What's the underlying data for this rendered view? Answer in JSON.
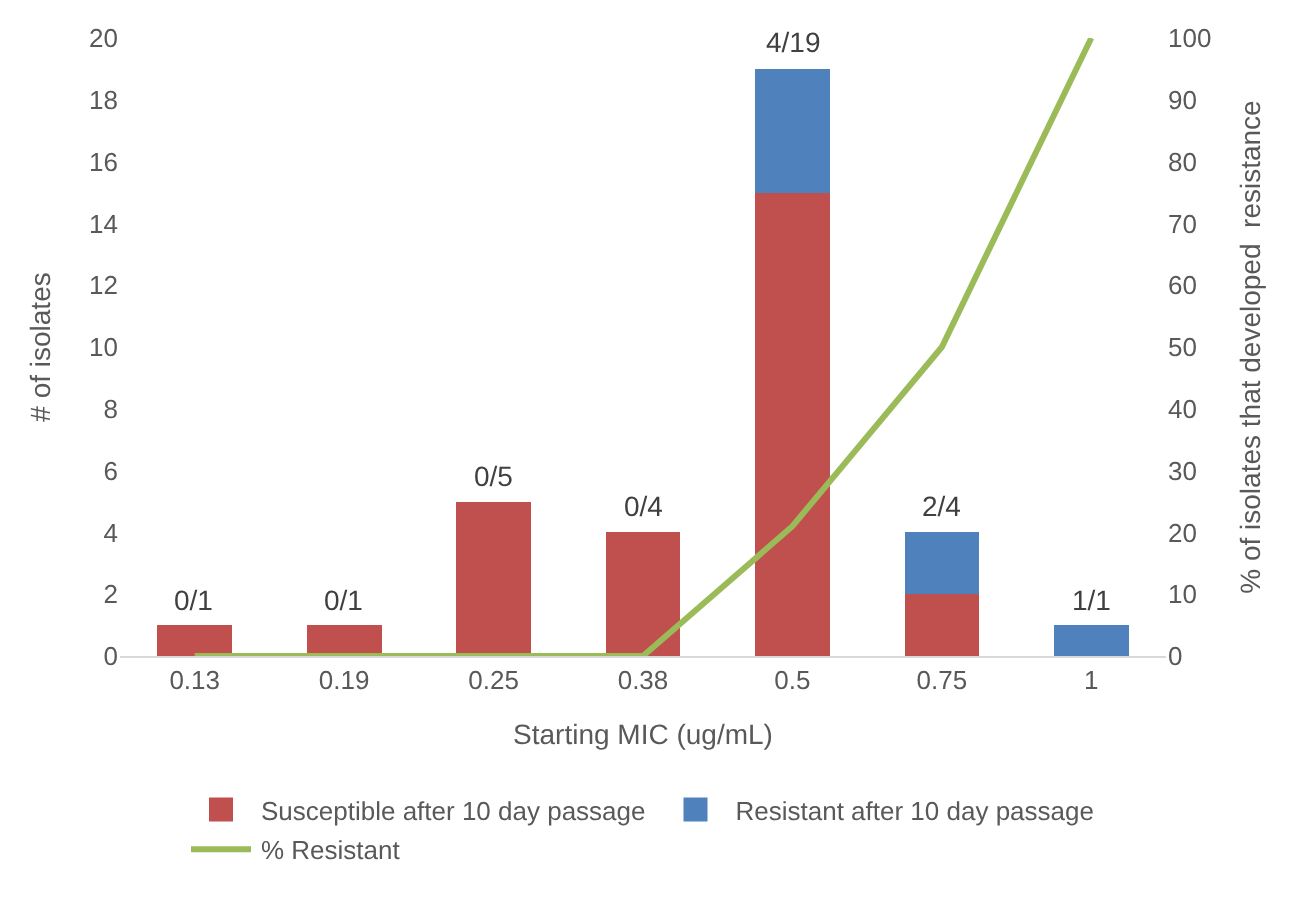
{
  "chart_data": {
    "type": "bar",
    "stacked": true,
    "categories": [
      "0.13",
      "0.19",
      "0.25",
      "0.38",
      "0.5",
      "0.75",
      "1"
    ],
    "xlabel": "Starting MIC (ug/mL)",
    "ylabel": "# of isolates",
    "y2label": "% of isolates that developed  resistance",
    "series": [
      {
        "name": "Susceptible after 10 day passage",
        "color": "#c0504d",
        "values": [
          1,
          1,
          5,
          4,
          15,
          2,
          0
        ]
      },
      {
        "name": "Resistant after 10 day passage",
        "color": "#4f81bd",
        "values": [
          0,
          0,
          0,
          0,
          4,
          2,
          1
        ]
      },
      {
        "name": "% Resistant",
        "type": "line",
        "axis": "y2",
        "color": "#9bbb59",
        "marker": "none",
        "values": [
          0,
          0,
          0,
          0,
          21,
          50,
          100
        ]
      }
    ],
    "annotations": [
      {
        "text": "0/1",
        "x": "0.13",
        "y": 1
      },
      {
        "text": "0/1",
        "x": "0.19",
        "y": 1
      },
      {
        "text": "0/5",
        "x": "0.25",
        "y": 5
      },
      {
        "text": "0/4",
        "x": "0.38",
        "y": 4
      },
      {
        "text": "4/19",
        "x": "0.5",
        "y": 19
      },
      {
        "text": "2/4",
        "x": "0.75",
        "y": 4
      },
      {
        "text": "1/1",
        "x": "1",
        "y": 1
      }
    ],
    "ylim": [
      0,
      20
    ],
    "yticks": [
      0,
      2,
      4,
      6,
      8,
      10,
      12,
      14,
      16,
      18,
      20
    ],
    "y2lim": [
      0,
      100
    ],
    "y2ticks": [
      0,
      10,
      20,
      30,
      40,
      50,
      60,
      70,
      80,
      90,
      100
    ],
    "legend": "bottom"
  }
}
